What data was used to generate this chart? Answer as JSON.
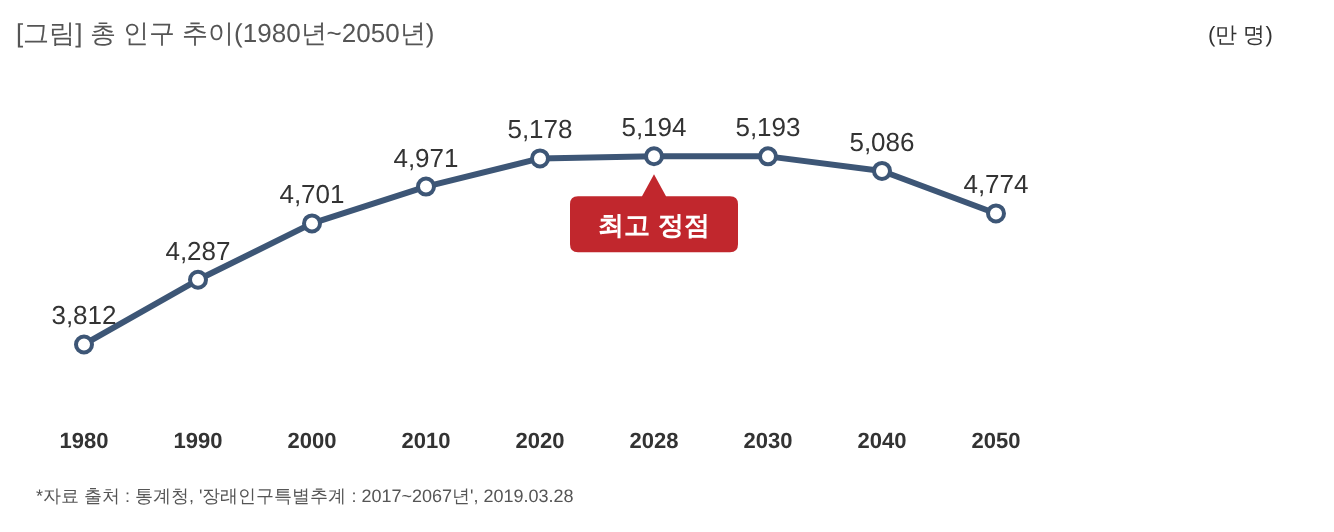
{
  "chart_data": {
    "type": "line",
    "title": "[그림] 총 인구 추이(1980년~2050년)",
    "categories": [
      "1980",
      "1990",
      "2000",
      "2010",
      "2020",
      "2028",
      "2030",
      "2040",
      "2050"
    ],
    "series": [
      {
        "color": "#3d5676",
        "values": [
          3812,
          4287,
          4701,
          4971,
          5178,
          5194,
          5193,
          5086,
          4774
        ],
        "value_labels": [
          "3,812",
          "4,287",
          "4,701",
          "4,971",
          "5,178",
          "5,194",
          "5,193",
          "5,086",
          "4,774"
        ]
      }
    ],
    "marker": "circle",
    "line_style": "solid",
    "grid": false,
    "annotations": [
      {
        "text": "최고 정점",
        "x": "2028",
        "y": 5194
      },
      "(만 명)",
      "*자료 출처 : 통계청, '장래인구특별추계 : 2017~2067년', 2019.03.28"
    ]
  }
}
